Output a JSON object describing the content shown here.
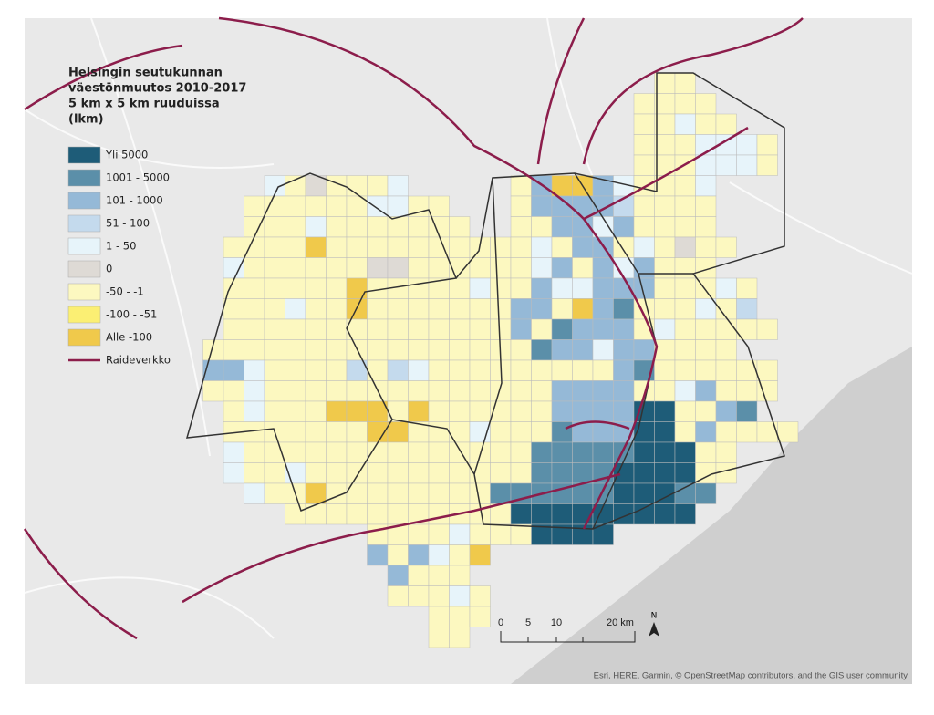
{
  "legend": {
    "title": [
      "Helsingin seutukunnan",
      "väestönmuutos 2010-2017",
      "5 km x 5 km ruuduissa",
      "(lkm)"
    ],
    "items": [
      {
        "label": "Yli 5000",
        "color": "#1e5c78"
      },
      {
        "label": "1001 - 5000",
        "color": "#5b8fa9"
      },
      {
        "label": "101 - 1000",
        "color": "#95b9d7"
      },
      {
        "label": "51 - 100",
        "color": "#c4daed"
      },
      {
        "label": "1 - 50",
        "color": "#e7f4fa"
      },
      {
        "label": "0",
        "color": "#dedad5"
      },
      {
        "label": "-50 - -1",
        "color": "#fcf8c0"
      },
      {
        "label": "-100 - -51",
        "color": "#fbef73"
      },
      {
        "label": "Alle -100",
        "color": "#f0c94b"
      }
    ],
    "line": {
      "label": "Raideverkko",
      "color": "#8c1d4b"
    }
  },
  "scale_bar": {
    "labels": [
      "0",
      "5",
      "10",
      "20 km"
    ]
  },
  "north": "N",
  "attribution": "Esri, HERE, Garmin, © OpenStreetMap contributors, and the GIS user community"
}
